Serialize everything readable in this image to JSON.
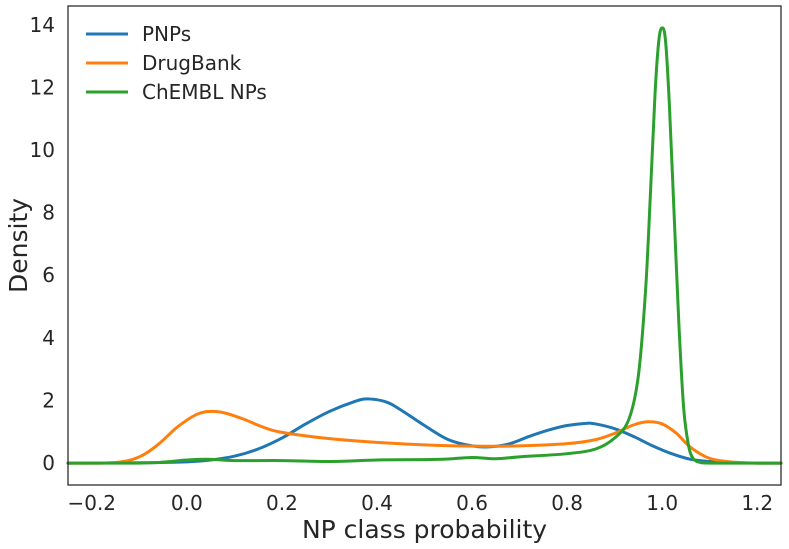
{
  "chart_data": {
    "type": "line",
    "title": "",
    "xlabel": "NP class probability",
    "ylabel": "Density",
    "xlim": [
      -0.25,
      1.25
    ],
    "ylim": [
      -0.7,
      14.6
    ],
    "xticks": [
      -0.2,
      0.0,
      0.2,
      0.4,
      0.6,
      0.8,
      1.0,
      1.2
    ],
    "xtick_labels": [
      "−0.2",
      "0.0",
      "0.2",
      "0.4",
      "0.6",
      "0.8",
      "1.0",
      "1.2"
    ],
    "yticks": [
      0,
      2,
      4,
      6,
      8,
      10,
      12,
      14
    ],
    "ytick_labels": [
      "0",
      "2",
      "4",
      "6",
      "8",
      "10",
      "12",
      "14"
    ],
    "grid": false,
    "legend_position": "top-left",
    "series": [
      {
        "name": "PNPs",
        "color": "#1f77b4",
        "x": [
          -0.25,
          -0.1,
          0.0,
          0.05,
          0.1,
          0.15,
          0.2,
          0.25,
          0.3,
          0.35,
          0.38,
          0.42,
          0.45,
          0.5,
          0.55,
          0.6,
          0.64,
          0.68,
          0.72,
          0.76,
          0.8,
          0.84,
          0.86,
          0.9,
          0.94,
          0.98,
          1.02,
          1.06,
          1.1,
          1.15,
          1.2,
          1.25
        ],
        "y": [
          0.0,
          0.01,
          0.04,
          0.1,
          0.22,
          0.45,
          0.8,
          1.25,
          1.65,
          1.95,
          2.05,
          1.95,
          1.7,
          1.2,
          0.75,
          0.55,
          0.52,
          0.62,
          0.85,
          1.05,
          1.2,
          1.27,
          1.25,
          1.1,
          0.85,
          0.55,
          0.3,
          0.12,
          0.05,
          0.01,
          0.0,
          0.0
        ]
      },
      {
        "name": "DrugBank",
        "color": "#ff7f0e",
        "x": [
          -0.25,
          -0.15,
          -0.1,
          -0.06,
          -0.02,
          0.02,
          0.05,
          0.08,
          0.12,
          0.16,
          0.2,
          0.3,
          0.4,
          0.5,
          0.6,
          0.7,
          0.8,
          0.86,
          0.9,
          0.94,
          0.97,
          1.0,
          1.03,
          1.06,
          1.1,
          1.15,
          1.2,
          1.25
        ],
        "y": [
          0.0,
          0.02,
          0.2,
          0.6,
          1.15,
          1.55,
          1.65,
          1.6,
          1.4,
          1.15,
          0.98,
          0.78,
          0.66,
          0.58,
          0.54,
          0.55,
          0.62,
          0.75,
          0.95,
          1.22,
          1.32,
          1.25,
          0.95,
          0.5,
          0.15,
          0.03,
          0.0,
          0.0
        ]
      },
      {
        "name": "ChEMBL NPs",
        "color": "#2ca02c",
        "x": [
          -0.25,
          -0.1,
          -0.05,
          0.0,
          0.05,
          0.1,
          0.2,
          0.3,
          0.35,
          0.4,
          0.5,
          0.55,
          0.6,
          0.65,
          0.7,
          0.8,
          0.86,
          0.9,
          0.93,
          0.95,
          0.965,
          0.975,
          0.985,
          0.993,
          1.0,
          1.007,
          1.015,
          1.025,
          1.035,
          1.045,
          1.055,
          1.065,
          1.08,
          1.1,
          1.15,
          1.25
        ],
        "y": [
          0.0,
          0.0,
          0.03,
          0.1,
          0.12,
          0.08,
          0.08,
          0.05,
          0.07,
          0.1,
          0.11,
          0.13,
          0.18,
          0.14,
          0.2,
          0.3,
          0.45,
          0.8,
          1.4,
          2.8,
          5.5,
          8.5,
          11.8,
          13.5,
          13.9,
          13.5,
          11.5,
          8.0,
          4.5,
          1.8,
          0.6,
          0.15,
          0.02,
          0.0,
          0.0,
          0.0
        ]
      }
    ]
  }
}
